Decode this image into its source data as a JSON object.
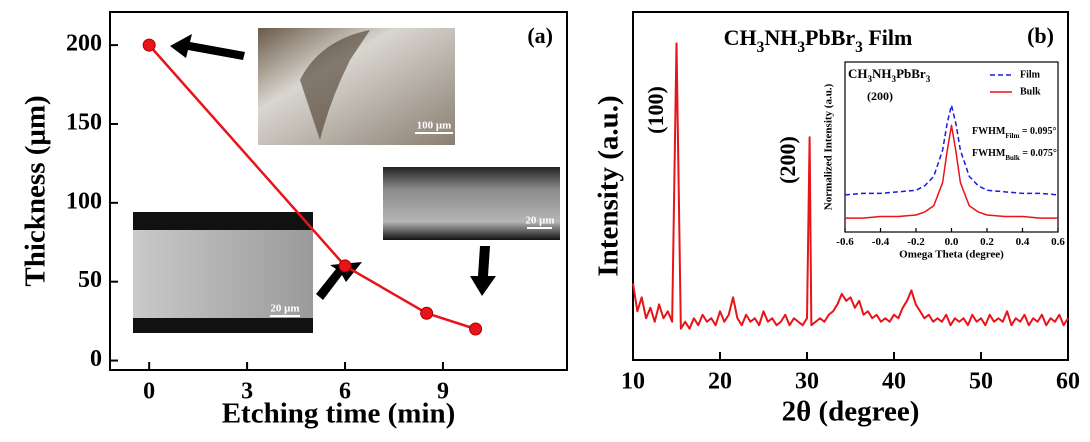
{
  "chart_data": [
    {
      "type": "line",
      "panel_label": "(a)",
      "x_label": "Etching time (min)",
      "y_label": "Thickness (μm)",
      "x": [
        0,
        6,
        8.5,
        10
      ],
      "values": [
        200,
        60,
        30,
        20
      ],
      "color": "#e8141a",
      "markers": true,
      "xlim": [
        -1.2,
        12.8
      ],
      "xticks": [
        0,
        3,
        6,
        9
      ],
      "ylim": [
        -6,
        221
      ],
      "yticks": [
        0,
        50,
        100,
        150,
        200
      ],
      "image_scale_bars": [
        "100 μm",
        "20 μm",
        "20 μm"
      ]
    },
    {
      "type": "line",
      "panel_label": "(b)",
      "title": "CH3NH3PbBr3 Film",
      "x_label": "2θ (degree)",
      "y_label": "Intensity (a.u.)",
      "peak_labels": [
        "(100)",
        "(200)"
      ],
      "x": [
        10,
        10.5,
        11,
        11.5,
        12,
        12.5,
        13,
        13.5,
        14,
        14.5,
        15,
        15.5,
        16,
        16.5,
        17,
        17.5,
        18,
        18.5,
        19,
        19.5,
        20,
        20.5,
        21,
        21.5,
        22,
        22.5,
        23,
        23.5,
        24,
        24.5,
        25,
        25.5,
        26,
        26.5,
        27,
        27.5,
        28,
        28.5,
        29,
        29.5,
        30,
        30.3,
        30.5,
        31,
        31.5,
        32,
        32.5,
        33,
        33.5,
        34,
        34.5,
        35,
        35.5,
        36,
        36.5,
        37,
        37.5,
        38,
        38.5,
        39,
        39.5,
        40,
        40.5,
        41,
        41.5,
        42,
        42.5,
        43,
        43.5,
        44,
        44.5,
        45,
        45.5,
        46,
        46.5,
        47,
        47.5,
        48,
        48.5,
        49,
        49.5,
        50,
        50.5,
        51,
        51.5,
        52,
        52.5,
        53,
        53.5,
        54,
        54.5,
        55,
        55.5,
        56,
        56.5,
        57,
        57.5,
        58,
        58.5,
        59,
        59.5,
        60
      ],
      "values": [
        22,
        14,
        18,
        12,
        15,
        11,
        16,
        12,
        14,
        11,
        91,
        9,
        11,
        9,
        12,
        10,
        13,
        11,
        12,
        10,
        14,
        11,
        13,
        18,
        12,
        10,
        13,
        11,
        12,
        10,
        14,
        11,
        12,
        10,
        11,
        13,
        10,
        12,
        11,
        10,
        12,
        64,
        10,
        11,
        12,
        11,
        13,
        14,
        16,
        19,
        17,
        18,
        15,
        17,
        13,
        14,
        12,
        13,
        11,
        12,
        11,
        13,
        12,
        15,
        17,
        20,
        16,
        14,
        12,
        13,
        11,
        12,
        11,
        13,
        10,
        12,
        11,
        12,
        10,
        13,
        11,
        12,
        10,
        13,
        11,
        12,
        11,
        14,
        10,
        12,
        11,
        13,
        10,
        12,
        11,
        13,
        10,
        12,
        11,
        13,
        10,
        12
      ],
      "color": "#e8141a",
      "xlim": [
        10,
        60
      ],
      "xticks": [
        10,
        20,
        30,
        40,
        50,
        60
      ],
      "ylim": [
        0,
        100
      ]
    },
    {
      "type": "line",
      "title": "CH3NH3PbBr3",
      "peak_label": "(200)",
      "x_label": "Omega Theta (degree)",
      "y_label": "Normalized Intensity (a.u.)",
      "x": [
        -0.6,
        -0.5,
        -0.4,
        -0.3,
        -0.2,
        -0.15,
        -0.1,
        -0.05,
        -0.025,
        0,
        0.025,
        0.05,
        0.1,
        0.15,
        0.2,
        0.3,
        0.4,
        0.5,
        0.6
      ],
      "series": [
        {
          "name": "Film",
          "color": "#1a1ae6",
          "style": "dashed",
          "values": [
            0.24,
            0.25,
            0.25,
            0.26,
            0.27,
            0.3,
            0.36,
            0.53,
            0.7,
            0.82,
            0.7,
            0.53,
            0.36,
            0.3,
            0.27,
            0.26,
            0.25,
            0.25,
            0.24
          ]
        },
        {
          "name": "Bulk",
          "color": "#e8141a",
          "style": "solid",
          "values": [
            0.09,
            0.09,
            0.1,
            0.1,
            0.11,
            0.13,
            0.17,
            0.32,
            0.52,
            0.69,
            0.52,
            0.32,
            0.17,
            0.13,
            0.11,
            0.1,
            0.1,
            0.09,
            0.09
          ]
        }
      ],
      "fwhm": [
        {
          "base": "FWHM",
          "sub": "Film",
          "rest": " = 0.095°"
        },
        {
          "base": "FWHM",
          "sub": "Bulk",
          "rest": " = 0.075°"
        }
      ],
      "xlim": [
        -0.6,
        0.6
      ],
      "xticks": [
        -0.6,
        -0.4,
        -0.2,
        {
          "value": 0,
          "label": "0.0"
        },
        0.2,
        0.4,
        0.6
      ],
      "ylim": [
        0,
        1.1
      ]
    }
  ]
}
